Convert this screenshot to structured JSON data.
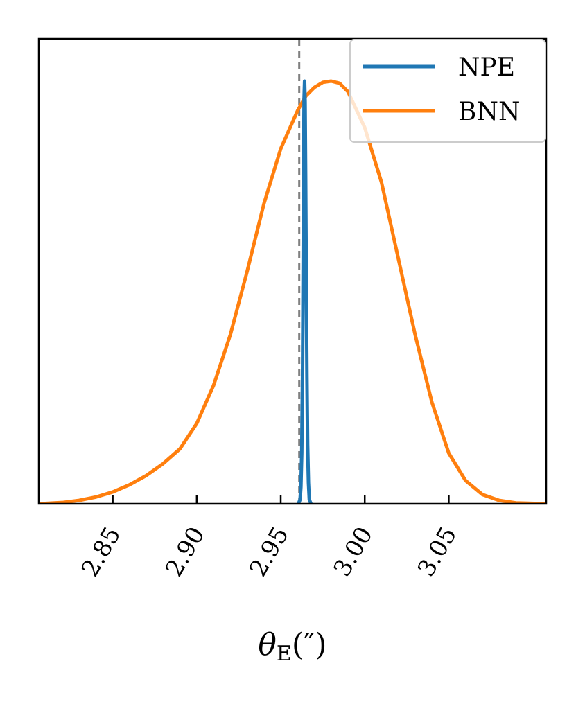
{
  "chart_data": {
    "type": "line",
    "title": "",
    "xlabel": "θ",
    "xlabel_subscript": "E",
    "xlabel_unit": "(″)",
    "ylabel": "",
    "xlim": [
      2.806,
      3.108
    ],
    "ylim": [
      0,
      1.0
    ],
    "xticks": [
      2.85,
      2.9,
      2.95,
      3.0,
      3.05
    ],
    "xtick_labels": [
      "2.85",
      "2.90",
      "2.95",
      "3.00",
      "3.05"
    ],
    "yticks": [],
    "grid": false,
    "legend": "top-right",
    "true_value": 2.961,
    "true_value_color": "#808080",
    "series": [
      {
        "name": "NPE",
        "color": "#1f77b4",
        "x": [
          2.9605,
          2.9615,
          2.962,
          2.9625,
          2.963,
          2.9633,
          2.9636,
          2.9639,
          2.9642,
          2.9645,
          2.9648,
          2.9652,
          2.9656,
          2.966,
          2.9665,
          2.967,
          2.968
        ],
        "y": [
          0.0,
          0.01,
          0.04,
          0.12,
          0.32,
          0.55,
          0.8,
          0.96,
          1.0,
          0.95,
          0.78,
          0.52,
          0.3,
          0.14,
          0.05,
          0.01,
          0.0
        ]
      },
      {
        "name": "BNN",
        "color": "#ff7f0e",
        "x": [
          2.806,
          2.82,
          2.83,
          2.84,
          2.85,
          2.86,
          2.87,
          2.88,
          2.89,
          2.9,
          2.91,
          2.92,
          2.93,
          2.94,
          2.95,
          2.96,
          2.965,
          2.97,
          2.975,
          2.98,
          2.985,
          2.99,
          3.0,
          3.01,
          3.02,
          3.03,
          3.04,
          3.05,
          3.06,
          3.07,
          3.08,
          3.09,
          3.108
        ],
        "y": [
          0.0,
          0.003,
          0.008,
          0.016,
          0.028,
          0.045,
          0.067,
          0.095,
          0.13,
          0.19,
          0.28,
          0.4,
          0.55,
          0.71,
          0.84,
          0.93,
          0.965,
          0.985,
          0.997,
          1.0,
          0.995,
          0.975,
          0.89,
          0.76,
          0.58,
          0.4,
          0.24,
          0.12,
          0.055,
          0.022,
          0.008,
          0.002,
          0.0
        ]
      }
    ]
  }
}
